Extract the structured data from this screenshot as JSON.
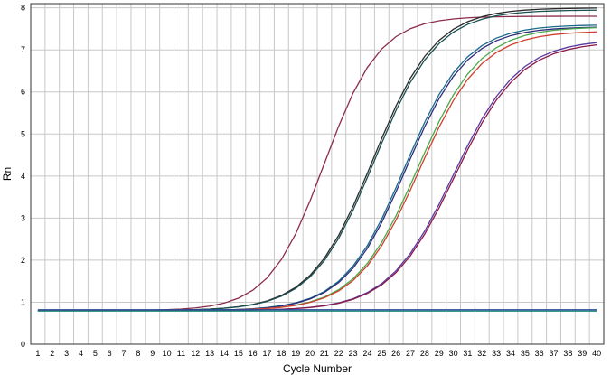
{
  "chart_data": {
    "type": "line",
    "title": "",
    "xlabel": "Cycle Number",
    "ylabel": "Rn",
    "xlim": [
      1,
      40
    ],
    "ylim": [
      0,
      8
    ],
    "x_ticks": [
      "1",
      "2",
      "3",
      "4",
      "5",
      "6",
      "7",
      "8",
      "9",
      "10",
      "11",
      "12",
      "13",
      "14",
      "15",
      "16",
      "17",
      "18",
      "19",
      "20",
      "21",
      "22",
      "23",
      "24",
      "25",
      "26",
      "27",
      "28",
      "29",
      "30",
      "31",
      "32",
      "33",
      "34",
      "35",
      "36",
      "37",
      "38",
      "39",
      "40"
    ],
    "y_ticks": [
      "0",
      "1",
      "2",
      "3",
      "4",
      "5",
      "6",
      "7",
      "8"
    ],
    "grid": true,
    "legend": "none",
    "series": [
      {
        "color": "#8b2c4a",
        "baseline": 0.8,
        "plateau": 7.8,
        "midpoint": 21.0,
        "slope": 0.52
      },
      {
        "color": "#2a2a2a",
        "baseline": 0.8,
        "plateau": 8.0,
        "midpoint": 24.4,
        "slope": 0.46
      },
      {
        "color": "#1a5050",
        "baseline": 0.8,
        "plateau": 7.95,
        "midpoint": 24.5,
        "slope": 0.46
      },
      {
        "color": "#1a6a8a",
        "baseline": 0.8,
        "plateau": 7.6,
        "midpoint": 26.6,
        "slope": 0.47
      },
      {
        "color": "#2a2a7a",
        "baseline": 0.8,
        "plateau": 7.55,
        "midpoint": 26.7,
        "slope": 0.47
      },
      {
        "color": "#4aa84a",
        "baseline": 0.8,
        "plateau": 7.55,
        "midpoint": 27.5,
        "slope": 0.46
      },
      {
        "color": "#d04030",
        "baseline": 0.8,
        "plateau": 7.45,
        "midpoint": 27.6,
        "slope": 0.46
      },
      {
        "color": "#5a3aa0",
        "baseline": 0.8,
        "plateau": 7.25,
        "midpoint": 30.0,
        "slope": 0.44
      },
      {
        "color": "#8a1a4a",
        "baseline": 0.8,
        "plateau": 7.2,
        "midpoint": 30.1,
        "slope": 0.44
      },
      {
        "color": "#2a4a9a",
        "baseline": 0.82,
        "flat": true
      },
      {
        "color": "#1a8a7a",
        "baseline": 0.79,
        "flat": true
      }
    ]
  }
}
